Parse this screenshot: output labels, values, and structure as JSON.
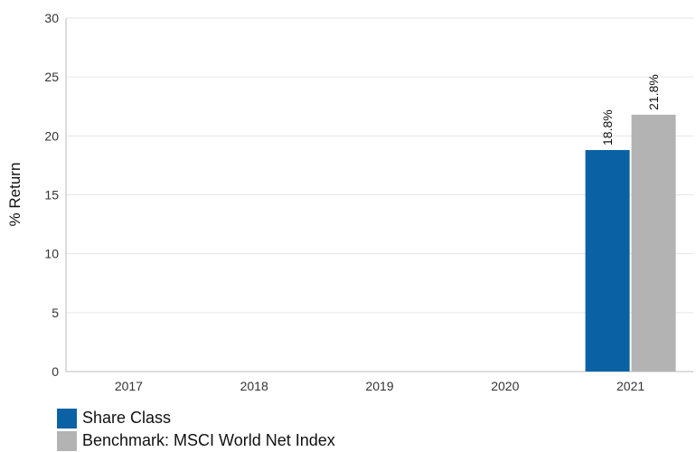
{
  "chart_data": {
    "type": "bar",
    "title": "",
    "xlabel": "",
    "ylabel": "% Return",
    "ylim": [
      0,
      30
    ],
    "yticks": [
      0,
      5,
      10,
      15,
      20,
      25,
      30
    ],
    "grid": true,
    "legend_position": "bottom-left",
    "categories": [
      "2017",
      "2018",
      "2019",
      "2020",
      "2021"
    ],
    "series": [
      {
        "name": "Share Class",
        "color": "#0a62a5",
        "values": [
          null,
          null,
          null,
          null,
          18.8
        ],
        "labels": [
          "",
          "",
          "",
          "",
          "18.8%"
        ]
      },
      {
        "name": "Benchmark: MSCI World Net Index",
        "color": "#b3b3b3",
        "values": [
          null,
          null,
          null,
          null,
          21.8
        ],
        "labels": [
          "",
          "",
          "",
          "",
          "21.8%"
        ]
      }
    ]
  }
}
